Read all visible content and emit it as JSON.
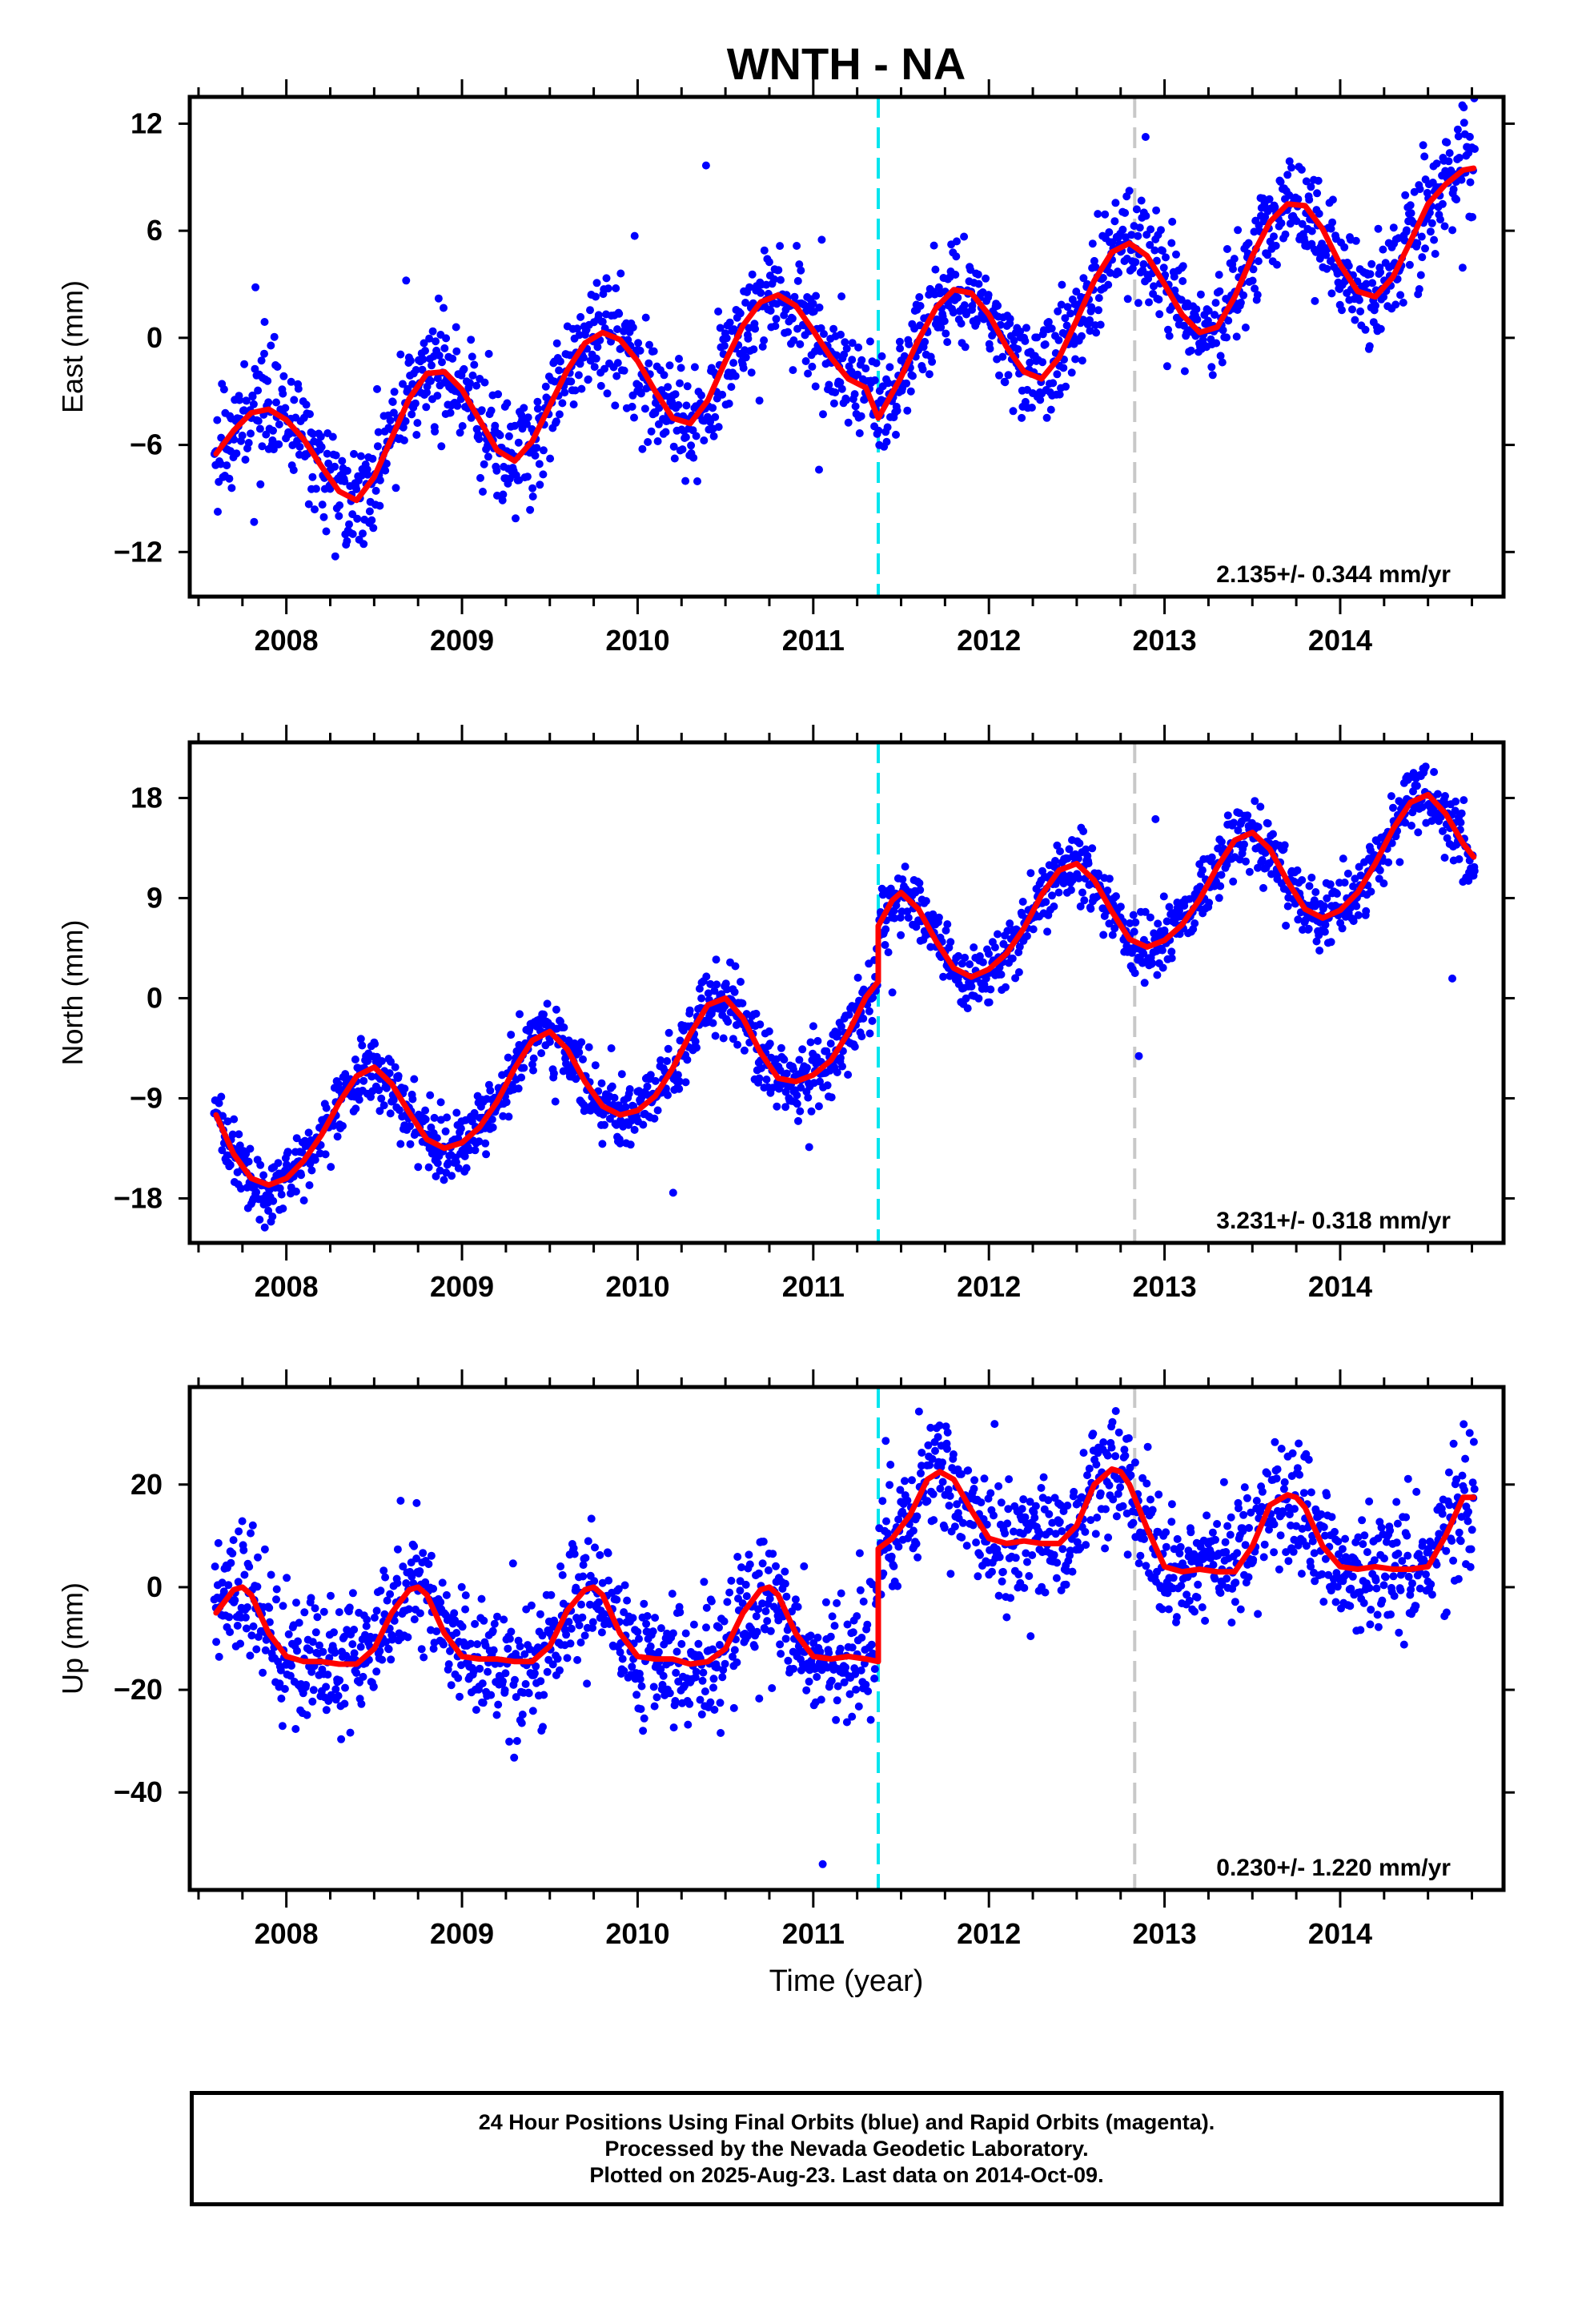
{
  "title": "WNTH - NA",
  "xlabel": "Time (year)",
  "footer": {
    "line1": "24 Hour Positions Using Final Orbits (blue) and Rapid Orbits (magenta).",
    "line2": "Processed by the Nevada Geodetic Laboratory.",
    "line3": "Plotted on 2025-Aug-23. Last data on 2014-Oct-09."
  },
  "colors": {
    "points": "#0000ff",
    "model": "#ff0000",
    "equipment_change_line": "#00e5ee",
    "other_event_line": "#c8c8c8"
  },
  "chart_data": [
    {
      "type": "scatter",
      "component": "east",
      "ylabel": "East (mm)",
      "rate_label": "2.135+/- 0.344 mm/yr",
      "xlim": [
        2007.45,
        2014.93
      ],
      "ylim": [
        -14.5,
        13.5
      ],
      "yticks": [
        12,
        6,
        0,
        -6,
        -12
      ],
      "xticks": [
        2008,
        2009,
        2010,
        2011,
        2012,
        2013,
        2014
      ],
      "events": [
        {
          "x": 2011.37,
          "kind": "equipment"
        },
        {
          "x": 2012.83,
          "kind": "other"
        }
      ],
      "model": {
        "breaks": [],
        "x": [
          2007.6,
          2007.7,
          2007.8,
          2007.9,
          2008.0,
          2008.1,
          2008.2,
          2008.3,
          2008.4,
          2008.5,
          2008.6,
          2008.7,
          2008.8,
          2008.9,
          2009.0,
          2009.1,
          2009.2,
          2009.3,
          2009.4,
          2009.5,
          2009.6,
          2009.7,
          2009.8,
          2009.9,
          2010.0,
          2010.1,
          2010.2,
          2010.3,
          2010.4,
          2010.5,
          2010.6,
          2010.7,
          2010.8,
          2010.9,
          2011.0,
          2011.1,
          2011.2,
          2011.3,
          2011.37,
          2011.5,
          2011.6,
          2011.7,
          2011.8,
          2011.9,
          2012.0,
          2012.1,
          2012.2,
          2012.3,
          2012.4,
          2012.5,
          2012.6,
          2012.7,
          2012.8,
          2012.9,
          2013.0,
          2013.1,
          2013.2,
          2013.3,
          2013.4,
          2013.5,
          2013.6,
          2013.7,
          2013.8,
          2013.9,
          2014.0,
          2014.1,
          2014.2,
          2014.3,
          2014.4,
          2014.5,
          2014.6,
          2014.7,
          2014.76
        ],
        "y": [
          -6.5,
          -5.2,
          -4.2,
          -4.0,
          -4.6,
          -5.7,
          -7.2,
          -8.6,
          -9.1,
          -7.8,
          -5.6,
          -3.4,
          -2.0,
          -1.9,
          -2.9,
          -4.6,
          -6.3,
          -6.9,
          -5.8,
          -3.8,
          -1.8,
          -0.3,
          0.3,
          -0.1,
          -1.3,
          -3.0,
          -4.5,
          -4.8,
          -3.5,
          -1.3,
          0.7,
          2.0,
          2.4,
          1.8,
          0.4,
          -1.1,
          -2.3,
          -2.8,
          -4.5,
          -2.2,
          -0.1,
          1.7,
          2.7,
          2.5,
          1.3,
          -0.5,
          -1.9,
          -2.3,
          -1.1,
          1.0,
          3.2,
          4.8,
          5.3,
          4.6,
          3.0,
          1.3,
          0.3,
          0.6,
          2.3,
          4.6,
          6.5,
          7.5,
          7.4,
          6.1,
          4.1,
          2.6,
          2.3,
          3.4,
          5.4,
          7.5,
          8.6,
          9.4,
          9.5
        ]
      }
    },
    {
      "type": "scatter",
      "component": "north",
      "ylabel": "North (mm)",
      "rate_label": "3.231+/- 0.318 mm/yr",
      "xlim": [
        2007.45,
        2014.93
      ],
      "ylim": [
        -22,
        23
      ],
      "yticks": [
        18,
        9,
        0,
        -9,
        -18
      ],
      "xticks": [
        2008,
        2009,
        2010,
        2011,
        2012,
        2013,
        2014
      ],
      "events": [
        {
          "x": 2011.37,
          "kind": "equipment"
        },
        {
          "x": 2012.83,
          "kind": "other"
        }
      ],
      "model": {
        "breaks": [
          2011.37
        ],
        "x": [
          2007.6,
          2007.7,
          2007.8,
          2007.9,
          2008.0,
          2008.1,
          2008.2,
          2008.3,
          2008.4,
          2008.5,
          2008.6,
          2008.7,
          2008.8,
          2008.9,
          2009.0,
          2009.1,
          2009.2,
          2009.3,
          2009.4,
          2009.5,
          2009.6,
          2009.7,
          2009.8,
          2009.9,
          2010.0,
          2010.1,
          2010.2,
          2010.3,
          2010.4,
          2010.5,
          2010.6,
          2010.7,
          2010.8,
          2010.9,
          2011.0,
          2011.1,
          2011.2,
          2011.3,
          2011.37,
          2011.37,
          2011.45,
          2011.5,
          2011.6,
          2011.7,
          2011.8,
          2011.9,
          2012.0,
          2012.1,
          2012.2,
          2012.3,
          2012.4,
          2012.5,
          2012.6,
          2012.7,
          2012.8,
          2012.9,
          2013.0,
          2013.1,
          2013.2,
          2013.3,
          2013.4,
          2013.5,
          2013.6,
          2013.7,
          2013.8,
          2013.9,
          2014.0,
          2014.1,
          2014.2,
          2014.3,
          2014.4,
          2014.5,
          2014.6,
          2014.7,
          2014.76
        ],
        "y": [
          -10.5,
          -14.0,
          -16.2,
          -16.8,
          -16.2,
          -14.6,
          -12.3,
          -9.4,
          -7.0,
          -6.2,
          -7.7,
          -10.3,
          -12.7,
          -13.5,
          -13.0,
          -11.6,
          -9.3,
          -6.3,
          -3.8,
          -3.0,
          -4.6,
          -7.5,
          -9.7,
          -10.5,
          -10.1,
          -8.8,
          -6.3,
          -3.2,
          -0.6,
          0.0,
          -1.8,
          -4.9,
          -7.2,
          -7.5,
          -6.9,
          -5.6,
          -3.1,
          0.1,
          1.5,
          6.5,
          8.8,
          9.5,
          8.0,
          5.1,
          2.7,
          1.9,
          2.6,
          4.0,
          6.3,
          9.3,
          11.5,
          12.1,
          10.6,
          7.8,
          5.3,
          4.6,
          5.2,
          6.6,
          8.9,
          11.8,
          14.2,
          14.9,
          13.4,
          10.5,
          8.0,
          7.2,
          7.9,
          9.5,
          12.1,
          15.2,
          17.6,
          18.3,
          16.6,
          13.9,
          12.7
        ]
      }
    },
    {
      "type": "scatter",
      "component": "up",
      "ylabel": "Up (mm)",
      "rate_label": "0.230+/- 1.220 mm/yr",
      "xlim": [
        2007.45,
        2014.93
      ],
      "ylim": [
        -59,
        39
      ],
      "yticks": [
        20,
        0,
        -20,
        -40
      ],
      "xticks": [
        2008,
        2009,
        2010,
        2011,
        2012,
        2013,
        2014
      ],
      "events": [
        {
          "x": 2011.37,
          "kind": "equipment"
        },
        {
          "x": 2012.83,
          "kind": "other"
        }
      ],
      "model": {
        "breaks": [
          2011.37
        ],
        "x": [
          2007.6,
          2007.7,
          2007.75,
          2007.8,
          2007.9,
          2008.0,
          2008.1,
          2008.2,
          2008.3,
          2008.4,
          2008.5,
          2008.6,
          2008.7,
          2008.75,
          2008.8,
          2008.9,
          2009.0,
          2009.1,
          2009.2,
          2009.3,
          2009.4,
          2009.5,
          2009.6,
          2009.7,
          2009.75,
          2009.8,
          2009.9,
          2010.0,
          2010.1,
          2010.2,
          2010.3,
          2010.4,
          2010.5,
          2010.6,
          2010.7,
          2010.75,
          2010.8,
          2010.9,
          2011.0,
          2011.1,
          2011.2,
          2011.3,
          2011.37,
          2011.37,
          2011.45,
          2011.55,
          2011.65,
          2011.72,
          2011.8,
          2011.9,
          2012.0,
          2012.1,
          2012.2,
          2012.3,
          2012.4,
          2012.5,
          2012.6,
          2012.7,
          2012.75,
          2012.8,
          2012.9,
          2013.0,
          2013.1,
          2013.2,
          2013.3,
          2013.4,
          2013.5,
          2013.6,
          2013.7,
          2013.75,
          2013.8,
          2013.9,
          2014.0,
          2014.1,
          2014.2,
          2014.3,
          2014.4,
          2014.5,
          2014.6,
          2014.7,
          2014.76
        ],
        "y": [
          -5,
          -0.5,
          0,
          -1.5,
          -9,
          -13.5,
          -14.5,
          -14.5,
          -15,
          -15,
          -12,
          -5,
          -0.5,
          0,
          -1.5,
          -9,
          -13.5,
          -14,
          -14,
          -14.5,
          -14.5,
          -11.5,
          -4.5,
          -0.5,
          0,
          -1.5,
          -9,
          -13.5,
          -14,
          -14,
          -15,
          -14.5,
          -12,
          -5,
          -0.5,
          0,
          -1.5,
          -9,
          -13.5,
          -14,
          -13.5,
          -14,
          -14.5,
          7.5,
          9.5,
          14,
          21,
          22.5,
          21,
          15,
          9.5,
          8.5,
          9,
          8.5,
          8.5,
          12,
          20,
          23,
          22.5,
          20,
          11.5,
          4,
          3,
          3.5,
          3,
          3,
          8,
          16,
          18,
          17.5,
          15.5,
          8,
          4,
          3.5,
          4,
          3.5,
          3.5,
          4,
          10,
          17.5,
          17.5
        ]
      }
    }
  ]
}
